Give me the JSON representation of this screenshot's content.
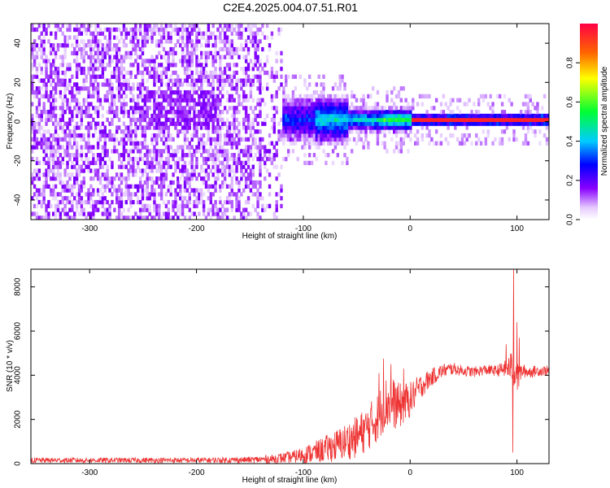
{
  "figure": {
    "title": "C2E4.2025.004.07.51.R01"
  },
  "chart_data": [
    {
      "type": "heatmap",
      "xlabel": "Height of straight line (km)",
      "ylabel": "Frequency (Hz)",
      "xlim": [
        -355,
        130
      ],
      "ylim": [
        -50,
        50
      ],
      "x_ticks": [
        -300,
        -200,
        -100,
        0,
        100
      ],
      "y_ticks": [
        -40,
        -20,
        0,
        20,
        40
      ],
      "grid": false,
      "colorbar": {
        "label": "Normalized spectral amplitude",
        "range": [
          0.0,
          1.0
        ],
        "ticks": [
          "0.0",
          "0.2",
          "0.4",
          "0.6",
          "0.8"
        ],
        "colormap": "rainbow (white to purple, blue, cyan, green, yellow, red)"
      },
      "signal_band": {
        "center_hz": 0,
        "onset_km": -150,
        "noise_x_range": [
          -355,
          -120
        ],
        "strongest_x_range": [
          0,
          130
        ]
      }
    },
    {
      "type": "line",
      "xlabel": "Height of straight line (km)",
      "ylabel": "SNR (10 * v/v)",
      "xlim": [
        -355,
        130
      ],
      "ylim": [
        0,
        8800
      ],
      "x_ticks": [
        -300,
        -200,
        -100,
        0,
        100
      ],
      "y_ticks": [
        0,
        2000,
        4000,
        6000,
        8000
      ],
      "grid": false,
      "series": [
        {
          "color": "#ee3333",
          "x": [
            -355,
            -300,
            -250,
            -200,
            -150,
            -130,
            -110,
            -90,
            -70,
            -50,
            -40,
            -30,
            -25,
            -20,
            -10,
            0,
            10,
            20,
            30,
            40,
            50,
            60,
            70,
            80,
            90,
            95,
            97,
            99,
            100,
            105,
            110,
            120,
            130
          ],
          "y": [
            150,
            150,
            150,
            150,
            170,
            200,
            300,
            500,
            800,
            1200,
            1600,
            2100,
            2600,
            2800,
            2600,
            2900,
            3500,
            3900,
            4200,
            4300,
            4200,
            4150,
            4250,
            4200,
            4300,
            4400,
            4350,
            4200,
            3800,
            4200,
            4150,
            4200,
            4200
          ],
          "spread": [
            150,
            150,
            150,
            150,
            180,
            250,
            350,
            600,
            900,
            1200,
            1300,
            1400,
            1500,
            1600,
            1300,
            1000,
            700,
            500,
            400,
            350,
            300,
            300,
            300,
            300,
            500,
            900,
            1200,
            800,
            900,
            400,
            350,
            300,
            300
          ],
          "spikes": [
            [
              -29,
              4100
            ],
            [
              -25,
              4750
            ],
            [
              -18,
              4500
            ],
            [
              -6,
              4300
            ],
            [
              90,
              5400
            ],
            [
              97,
              8800
            ],
            [
              96,
              500
            ],
            [
              100,
              6400
            ],
            [
              102,
              5700
            ]
          ]
        }
      ]
    }
  ],
  "colors": {
    "line": "#ee3333",
    "axis": "#000000",
    "background": "#ffffff"
  }
}
